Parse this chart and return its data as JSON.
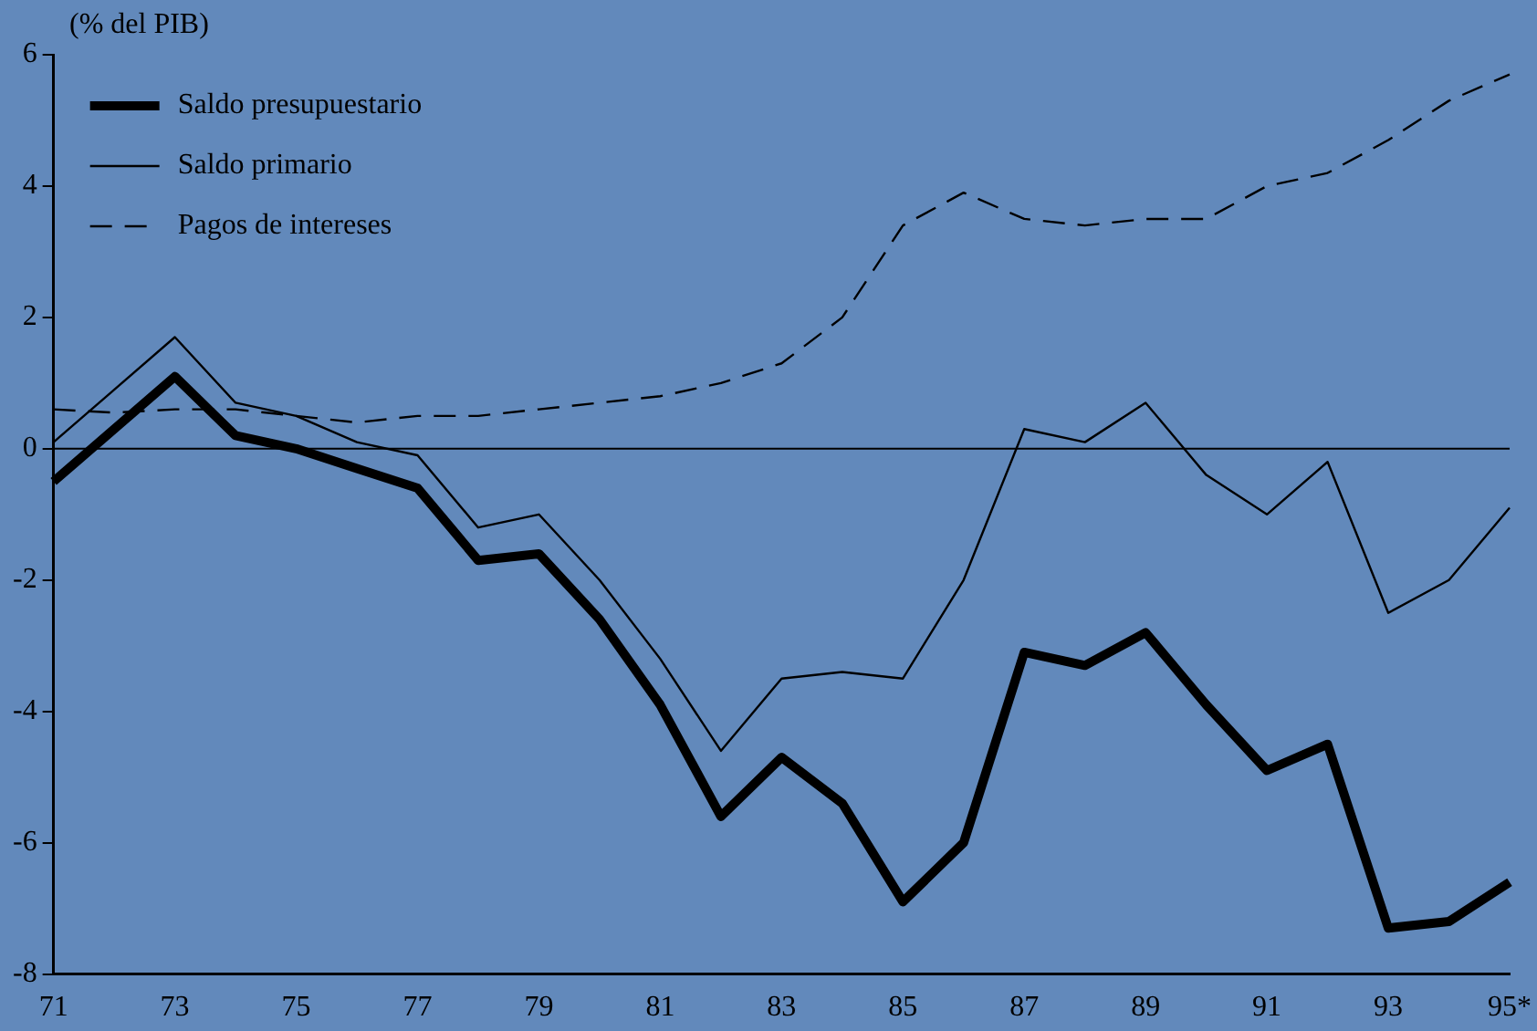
{
  "chart_data": {
    "type": "line",
    "ylabel": "(% del PIB)",
    "categories": [
      "71",
      null,
      "73",
      null,
      "75",
      null,
      "77",
      null,
      "79",
      null,
      "81",
      null,
      "83",
      null,
      "85",
      null,
      "87",
      null,
      "89",
      null,
      "91",
      null,
      "93",
      null,
      "95*"
    ],
    "series": [
      {
        "name": "Saldo presupuestario",
        "color": "#000000",
        "line_style": "solid",
        "values": [
          -0.5,
          0.3,
          1.1,
          0.2,
          0.0,
          -0.3,
          -0.6,
          -1.7,
          -1.6,
          -2.6,
          -3.9,
          -5.6,
          -4.7,
          -5.4,
          -6.9,
          -6.0,
          -3.1,
          -3.3,
          -2.8,
          -3.9,
          -4.9,
          -4.5,
          -7.3,
          -7.2,
          -6.6
        ]
      },
      {
        "name": "Saldo primario",
        "color": "#000000",
        "line_style": "solid",
        "values": [
          0.1,
          0.9,
          1.7,
          0.7,
          0.5,
          0.1,
          -0.1,
          -1.2,
          -1.0,
          -2.0,
          -3.2,
          -4.6,
          -3.5,
          -3.4,
          -3.5,
          -2.0,
          0.3,
          0.1,
          0.7,
          -0.4,
          -1.0,
          -0.2,
          -2.5,
          -2.0,
          -0.9
        ]
      },
      {
        "name": "Pagos de intereses",
        "color": "#000000",
        "line_style": "dashed",
        "values": [
          0.6,
          0.55,
          0.6,
          0.6,
          0.5,
          0.4,
          0.5,
          0.5,
          0.6,
          0.7,
          0.8,
          1.0,
          1.3,
          2.0,
          3.4,
          3.9,
          3.5,
          3.4,
          3.5,
          3.5,
          4.0,
          4.2,
          4.7,
          5.3,
          5.7
        ]
      }
    ],
    "ylim": [
      -8,
      6
    ],
    "yticks": [
      -8,
      -6,
      -4,
      -2,
      0,
      2,
      4,
      6
    ],
    "ref_lines": [
      {
        "axis": "y",
        "value": 0
      }
    ],
    "grid": false,
    "legend": "top left",
    "marker": "none"
  }
}
